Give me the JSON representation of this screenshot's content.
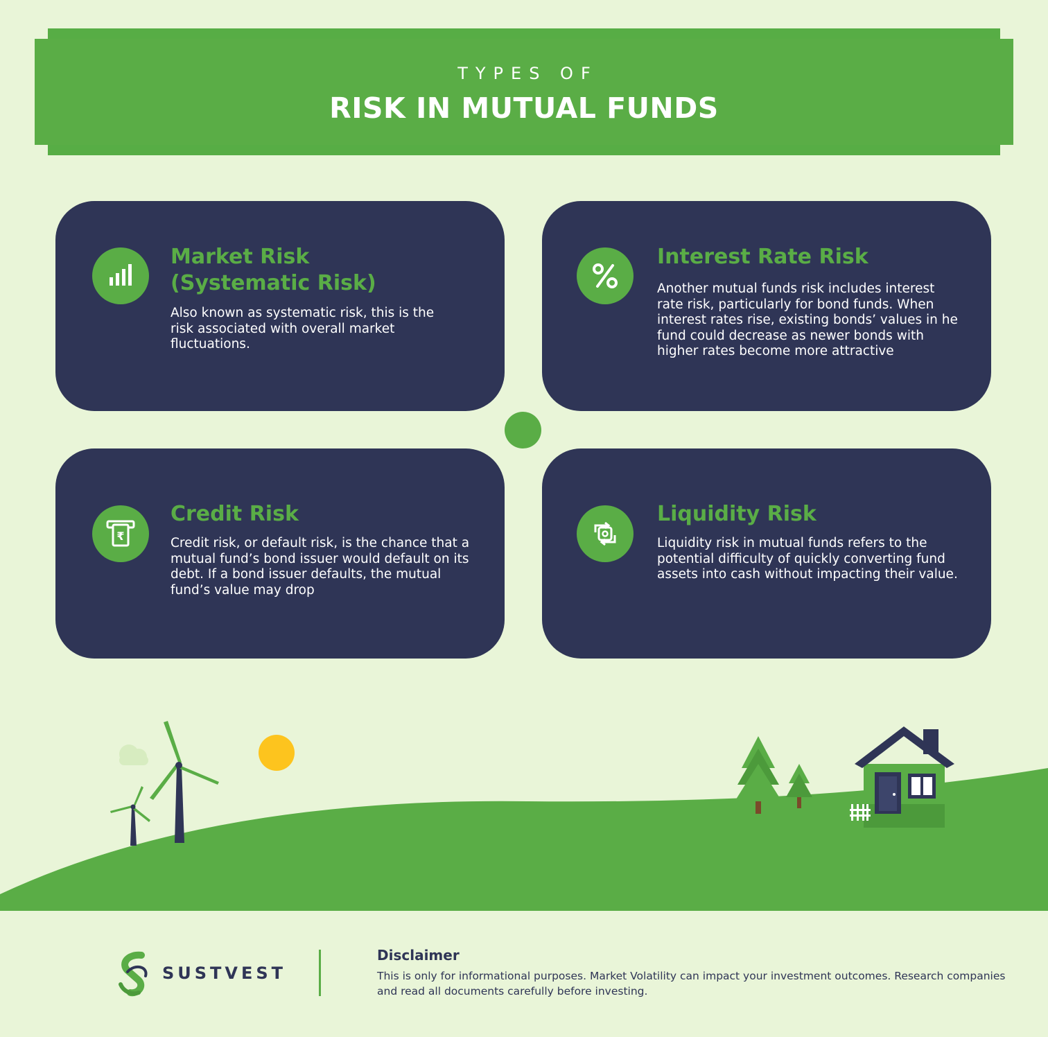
{
  "header": {
    "kicker": "TYPES OF",
    "title": "RISK IN MUTUAL FUNDS"
  },
  "cards": [
    {
      "icon": "bar-chart-icon",
      "title": "Market Risk (Systematic Risk)",
      "body": "Also known as systematic risk, this is the risk associated with overall market fluctuations."
    },
    {
      "icon": "percent-icon",
      "title": "Interest Rate Risk",
      "body": "Another mutual funds risk includes interest rate risk, particularly for bond funds. When interest rates rise, existing bonds’ values in he fund could decrease as newer bonds with higher rates become more attractive"
    },
    {
      "icon": "atm-rupee-icon",
      "title": "Credit Risk",
      "body": "Credit risk, or default risk, is the chance that a mutual fund’s bond issuer would default on its debt. If a bond issuer defaults, the mutual fund’s value may drop"
    },
    {
      "icon": "currency-exchange-icon",
      "title": "Liquidity Risk",
      "body": "Liquidity risk in mutual funds refers to the potential difficulty of quickly converting fund assets into cash without impacting their value."
    }
  ],
  "footer": {
    "logo": "SUSTVEST",
    "disclaimer_title": "Disclaimer",
    "disclaimer_body": "This is only for informational purposes. Market Volatility can impact your investment outcomes. Research companies and read all documents carefully before investing."
  },
  "colors": {
    "background": "#e9f5d8",
    "green": "#5aad46",
    "navy": "#2f3556",
    "sun": "#fdc41e"
  }
}
